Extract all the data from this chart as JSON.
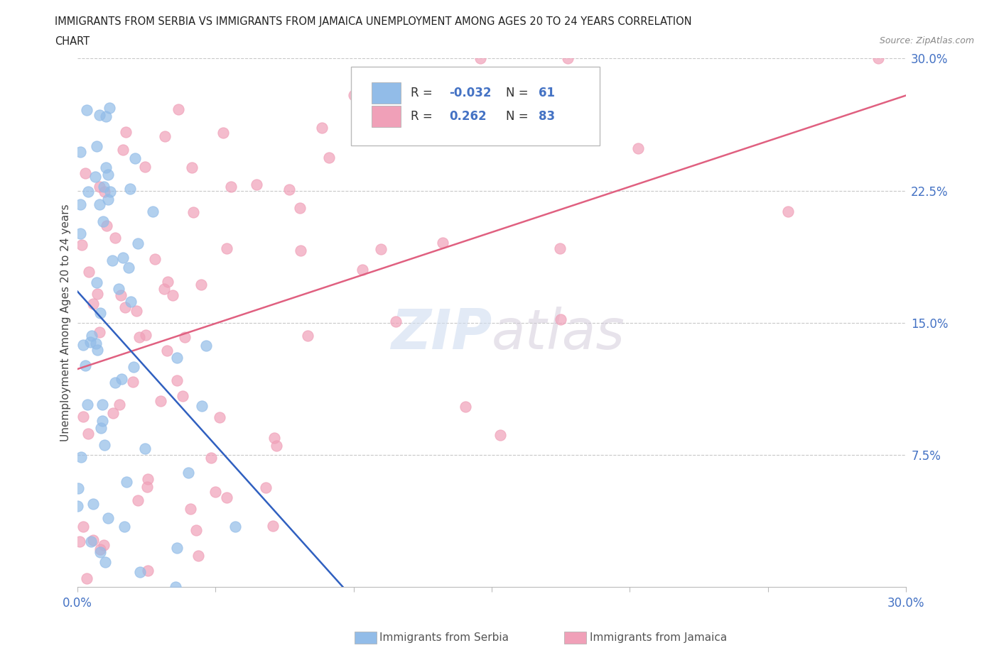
{
  "title_line1": "IMMIGRANTS FROM SERBIA VS IMMIGRANTS FROM JAMAICA UNEMPLOYMENT AMONG AGES 20 TO 24 YEARS CORRELATION",
  "title_line2": "CHART",
  "source": "Source: ZipAtlas.com",
  "ylabel": "Unemployment Among Ages 20 to 24 years",
  "xlim": [
    0,
    0.3
  ],
  "ylim": [
    0,
    0.3
  ],
  "serbia_color": "#92bce8",
  "jamaica_color": "#f0a0b8",
  "serbia_R": -0.032,
  "serbia_N": 61,
  "jamaica_R": 0.262,
  "jamaica_N": 83,
  "trend_serbia_solid_color": "#3060c0",
  "trend_serbia_dash_color": "#80aad8",
  "trend_jamaica_color": "#e06080",
  "watermark": "ZIPatlas"
}
